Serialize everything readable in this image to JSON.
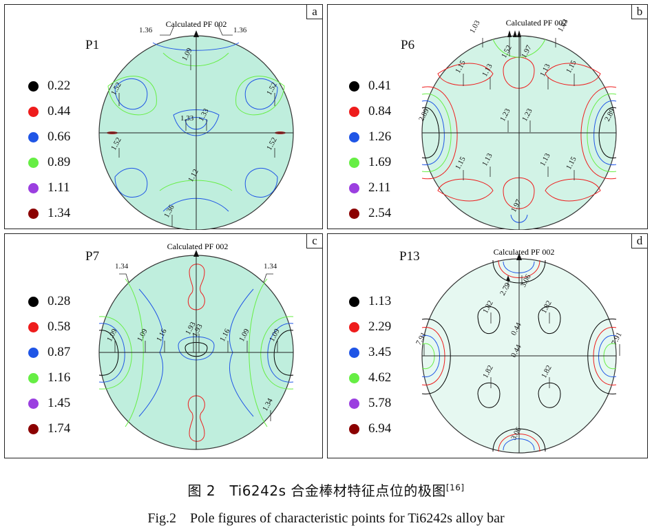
{
  "figure": {
    "caption_cn": "图 2　Ti6242s 合金棒材特征点位的极图",
    "caption_cn_ref": "[16]",
    "caption_en": "Fig.2　Pole figures of characteristic points for Ti6242s alloy bar"
  },
  "colors": {
    "level1": "#000000",
    "level2": "#ee1c1c",
    "level3": "#1f55e6",
    "level4": "#66ee44",
    "level5": "#9b3fe0",
    "level6": "#8b0000",
    "fill": "#bfeedd",
    "fill_light": "#e6f8f1"
  },
  "panels": [
    {
      "tag": "a",
      "name": "P1",
      "pf_title": "Calculated PF 002",
      "legend": [
        "0.22",
        "0.44",
        "0.66",
        "0.89",
        "1.11",
        "1.34"
      ],
      "labels": [
        "1.36",
        "1.36",
        "1.09",
        "1.52",
        "1.52",
        "1.33",
        "1.33",
        "1.52",
        "1.52",
        "1.12",
        "1.36"
      ]
    },
    {
      "tag": "b",
      "name": "P6",
      "pf_title": "Calculated PF 002",
      "legend": [
        "0.41",
        "0.84",
        "1.26",
        "1.69",
        "2.11",
        "2.54"
      ],
      "labels": [
        "1.03",
        "1.03",
        "1.52",
        "1.97",
        "1.15",
        "1.13",
        "1.13",
        "1.15",
        "2.89",
        "1.23",
        "1.23",
        "2.89",
        "1.15",
        "1.13",
        "1.13",
        "1.15",
        "1.97"
      ]
    },
    {
      "tag": "c",
      "name": "P7",
      "pf_title": "Calculated PF 002",
      "legend": [
        "0.28",
        "0.58",
        "0.87",
        "1.16",
        "1.45",
        "1.74"
      ],
      "labels": [
        "1.34",
        "1.34",
        "1.09",
        "1.09",
        "1.16",
        "1.93",
        "1.93",
        "1.16",
        "1.09",
        "1.09",
        "1.34"
      ]
    },
    {
      "tag": "d",
      "name": "P13",
      "pf_title": "Calculated PF 002",
      "legend": [
        "1.13",
        "2.29",
        "3.45",
        "4.62",
        "5.78",
        "6.94"
      ],
      "labels": [
        "2.79",
        "3.06",
        "1.82",
        "1.82",
        "0.44",
        "7.91",
        "0.44",
        "7.91",
        "1.82",
        "1.82",
        "3.06"
      ]
    }
  ]
}
